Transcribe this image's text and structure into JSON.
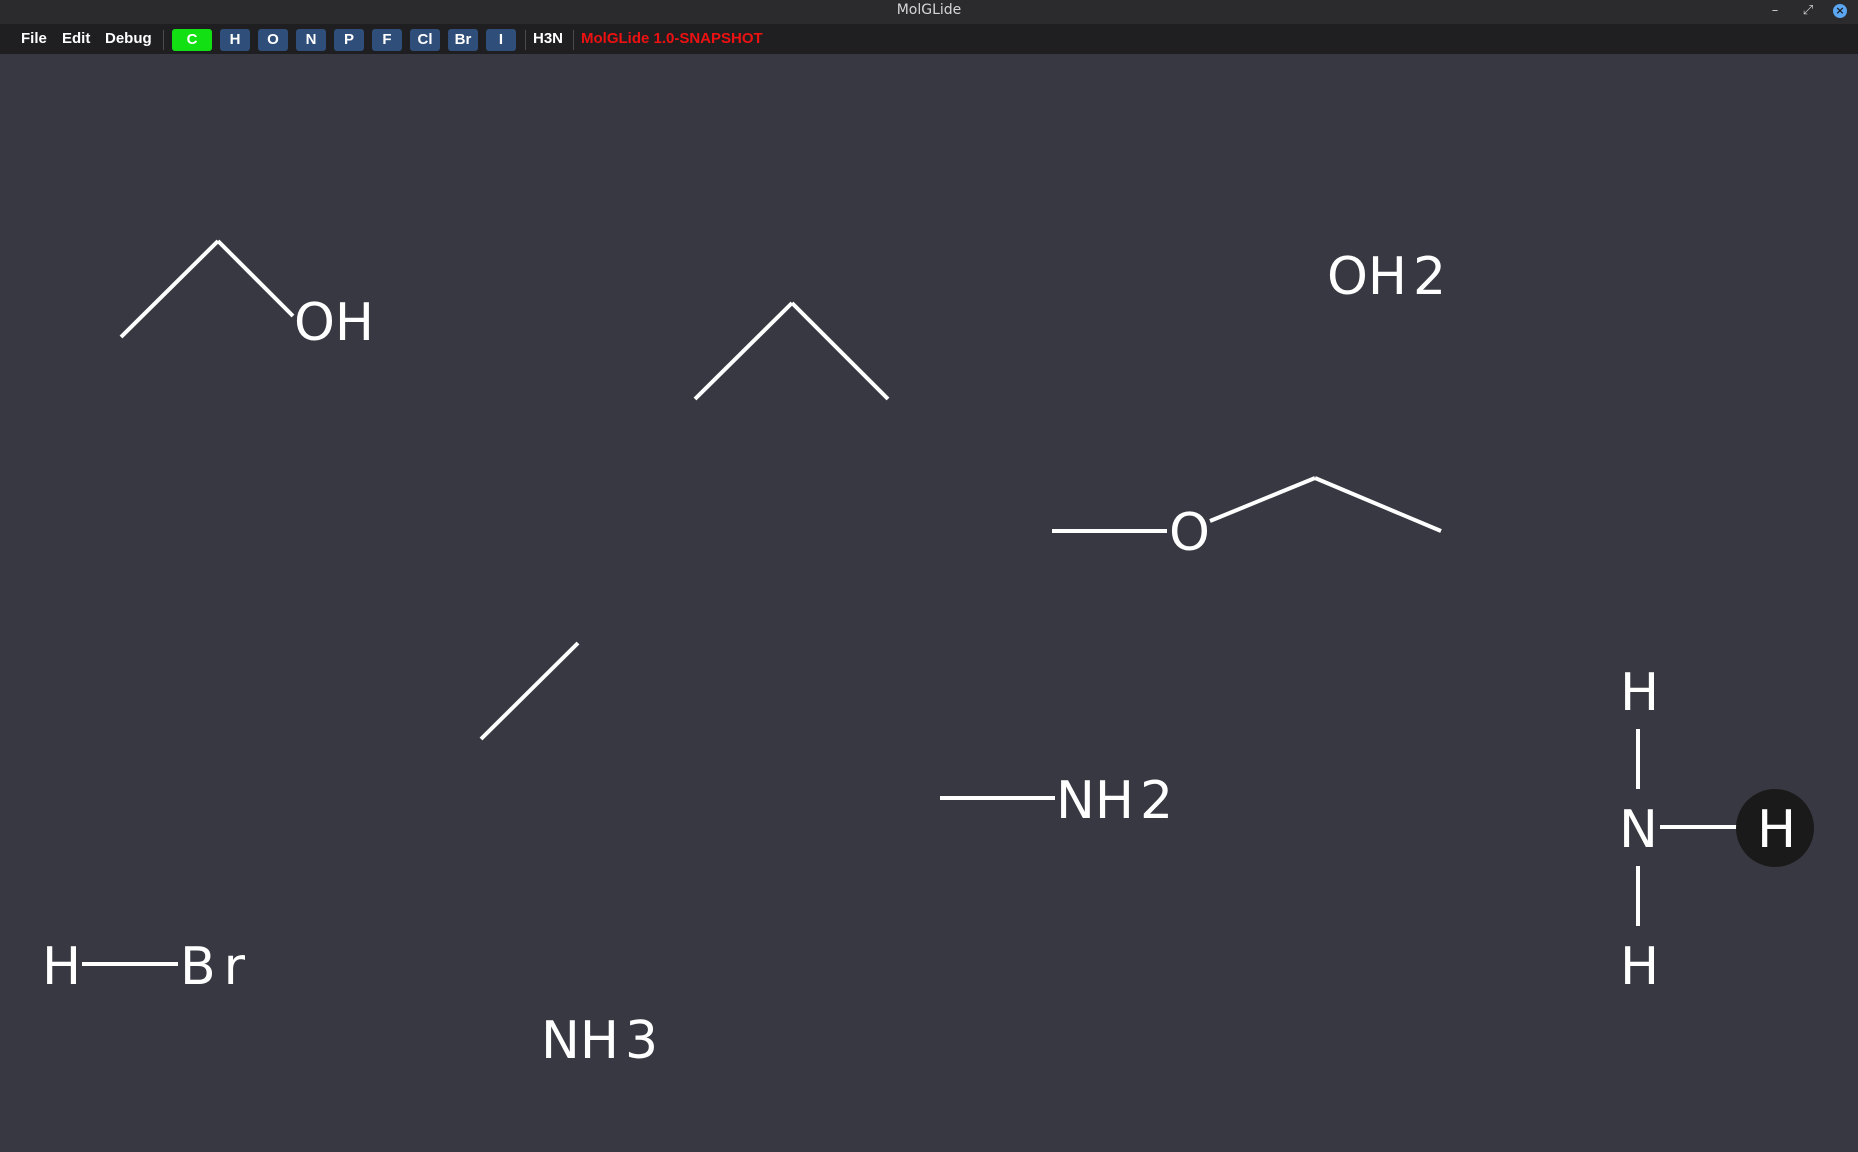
{
  "window": {
    "title": "MolGLide"
  },
  "menubar": {
    "menus": [
      "File",
      "Edit",
      "Debug"
    ],
    "elements": [
      {
        "label": "C",
        "active": true
      },
      {
        "label": "H"
      },
      {
        "label": "O"
      },
      {
        "label": "N"
      },
      {
        "label": "P"
      },
      {
        "label": "F"
      },
      {
        "label": "Cl"
      },
      {
        "label": "Br"
      },
      {
        "label": "I"
      }
    ],
    "formula": "H3N",
    "version": "MolGLide 1.0-SNAPSHOT"
  },
  "colors": {
    "background": "#383842",
    "active_element": "#12e012",
    "element_button": "#2f4f7a",
    "version_text": "#ee1111",
    "hover_atom": "#1a1a1a"
  },
  "canvas": {
    "ethanol": {
      "oh": "OH"
    },
    "water": {
      "label": "OH",
      "sub": "2"
    },
    "ether": {
      "o": "O"
    },
    "methylamine": {
      "label": "NH",
      "sub": "2"
    },
    "ammonia_formula": {
      "label": "NH",
      "sub": "3"
    },
    "hbr": {
      "h": "H",
      "br": "Br"
    },
    "ammonia_structure": {
      "h_top": "H",
      "n": "N",
      "h_right": "H",
      "h_bottom": "H"
    }
  }
}
